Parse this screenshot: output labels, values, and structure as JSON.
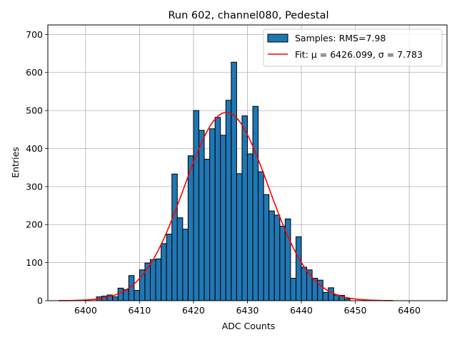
{
  "chart_data": {
    "type": "bar",
    "title": "Run 602, channel080, Pedestal",
    "xlabel": "ADC Counts",
    "ylabel": "Entries",
    "xlim": [
      6393,
      6467
    ],
    "ylim": [
      0,
      725
    ],
    "xticks": [
      6400,
      6410,
      6420,
      6430,
      6440,
      6450,
      6460
    ],
    "yticks": [
      0,
      100,
      200,
      300,
      400,
      500,
      600,
      700
    ],
    "grid": true,
    "legend_position": "top-right",
    "bin_width": 1,
    "series": [
      {
        "name": "Samples: RMS=7.98",
        "kind": "histogram",
        "color": "#1f77b4",
        "edgecolor": "#000000",
        "bins": [
          6402,
          6403,
          6404,
          6405,
          6406,
          6407,
          6408,
          6409,
          6410,
          6411,
          6412,
          6413,
          6414,
          6415,
          6416,
          6417,
          6418,
          6419,
          6420,
          6421,
          6422,
          6423,
          6424,
          6425,
          6426,
          6427,
          6428,
          6429,
          6430,
          6431,
          6432,
          6433,
          6434,
          6435,
          6436,
          6437,
          6438,
          6439,
          6440,
          6441,
          6442,
          6443,
          6444,
          6445,
          6446,
          6447,
          6448
        ],
        "values": [
          10,
          12,
          15,
          10,
          33,
          29,
          66,
          27,
          81,
          99,
          108,
          110,
          150,
          175,
          333,
          218,
          188,
          381,
          500,
          448,
          372,
          452,
          482,
          435,
          527,
          627,
          334,
          486,
          386,
          511,
          339,
          279,
          236,
          225,
          196,
          215,
          59,
          168,
          88,
          81,
          59,
          54,
          22,
          34,
          15,
          14,
          5
        ]
      },
      {
        "name": "Fit: μ = 6426.099, σ = 7.783",
        "kind": "gaussian-fit",
        "color": "#ff0000",
        "mu": 6426.099,
        "sigma": 7.783,
        "amplitude": 495,
        "x_range": [
          6395,
          6457
        ]
      }
    ]
  },
  "legend": {
    "entries": [
      {
        "label": "Samples: RMS=7.98"
      },
      {
        "label": "Fit: μ = 6426.099, σ = 7.783"
      }
    ]
  }
}
